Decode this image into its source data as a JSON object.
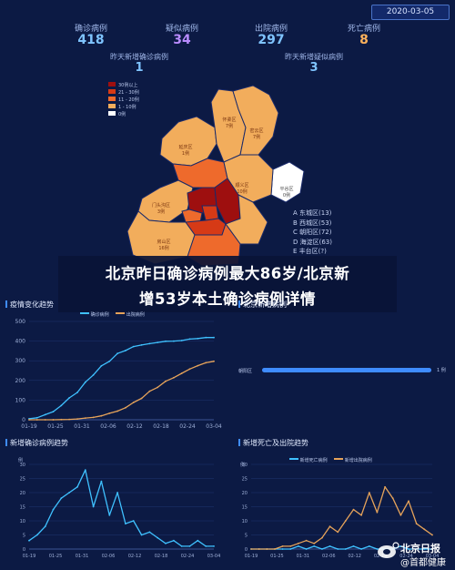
{
  "header": {
    "date": "2020-03-05"
  },
  "stats": [
    {
      "label": "确诊病例",
      "value": "418",
      "color": "#7fc4ff"
    },
    {
      "label": "疑似病例",
      "value": "34",
      "color": "#b98cff"
    },
    {
      "label": "出院病例",
      "value": "297",
      "color": "#7fc4ff"
    },
    {
      "label": "死亡病例",
      "value": "8",
      "color": "#ffb25c"
    }
  ],
  "new_stats": [
    {
      "label": "昨天新增确诊病例",
      "value": "1"
    },
    {
      "label": "昨天新增疑似病例",
      "value": "3"
    }
  ],
  "map_legend": [
    {
      "label": "30例以上",
      "color": "#9e0f0f"
    },
    {
      "label": "21 - 30例",
      "color": "#d63a16"
    },
    {
      "label": "11 - 20例",
      "color": "#ee6a2c"
    },
    {
      "label": "1 - 10例",
      "color": "#f2ad5c"
    },
    {
      "label": "0例",
      "color": "#ffffff"
    }
  ],
  "district_labels": [
    {
      "name": "延庆区",
      "count": "1例"
    },
    {
      "name": "怀柔区",
      "count": "7例"
    },
    {
      "name": "密云区",
      "count": "7例"
    },
    {
      "name": "昌平区",
      "count": "?"
    },
    {
      "name": "顺义区",
      "count": "10例"
    },
    {
      "name": "平谷区",
      "count": "0例"
    },
    {
      "name": "门头沟区",
      "count": "3例"
    },
    {
      "name": "石景山区",
      "count": ""
    },
    {
      "name": "通州区",
      "count": "?"
    },
    {
      "name": "房山区",
      "count": "16例"
    },
    {
      "name": "大兴区",
      "count": "?"
    }
  ],
  "district_list": [
    "A 东城区(13)",
    "B 西城区(53)",
    "C 朝阳区(72)",
    "D 海淀区(63)",
    "E 丰台区(?)"
  ],
  "banner": {
    "line1": "北京昨日确诊病例最大86岁/北京新",
    "line2": "增53岁本土确诊病例详情"
  },
  "trend_panel": {
    "title": "疫情变化趋势",
    "legend": [
      "确诊病例",
      "出院病例"
    ],
    "y_ticks": [
      "500",
      "400",
      "300",
      "200",
      "100",
      "0"
    ],
    "x_ticks": [
      "01-19",
      "01-25",
      "01-31",
      "02-06",
      "02-12",
      "02-18",
      "02-24",
      "03-04"
    ]
  },
  "right_panel": {
    "partial_title": "北京新增病例",
    "bar_label": "朝阳区",
    "bar_value": "1 例",
    "bar_fraction": 1.0
  },
  "new_confirmed_panel": {
    "title": "新增确诊病例趋势",
    "unit": "例",
    "y_ticks": [
      "30",
      "25",
      "20",
      "15",
      "10",
      "5",
      "0"
    ],
    "x_ticks": [
      "01-19",
      "01-25",
      "01-31",
      "02-06",
      "02-12",
      "02-18",
      "02-24",
      "03-04"
    ]
  },
  "new_death_panel": {
    "title": "新增死亡及出院趋势",
    "unit": "例",
    "legend": [
      "新增死亡病例",
      "新增出院病例"
    ],
    "y_ticks": [
      "30",
      "25",
      "20",
      "15",
      "10",
      "5",
      "0"
    ],
    "x_ticks": [
      "01-19",
      "01-25",
      "01-31",
      "02-06",
      "02-12",
      "02-18",
      "02-24",
      "03-04"
    ]
  },
  "watermark": {
    "line1": "北京日报",
    "line2": "@首都健康"
  },
  "chart_data": [
    {
      "type": "line",
      "ylim": [
        0,
        500
      ],
      "x": [
        "01-19",
        "01-21",
        "01-23",
        "01-25",
        "01-27",
        "01-29",
        "01-31",
        "02-02",
        "02-04",
        "02-06",
        "02-08",
        "02-10",
        "02-12",
        "02-14",
        "02-16",
        "02-18",
        "02-20",
        "02-22",
        "02-24",
        "02-26",
        "02-28",
        "03-01",
        "03-03",
        "03-04"
      ],
      "series": [
        {
          "name": "确诊病例",
          "color": "#3fc1ff",
          "values": [
            5,
            10,
            26,
            41,
            72,
            111,
            139,
            191,
            228,
            274,
            297,
            337,
            352,
            372,
            380,
            387,
            393,
            399,
            400,
            403,
            410,
            413,
            418,
            418
          ]
        },
        {
          "name": "出院病例",
          "color": "#e6a35a",
          "values": [
            0,
            0,
            0,
            0,
            1,
            2,
            4,
            9,
            12,
            20,
            33,
            44,
            61,
            88,
            109,
            145,
            165,
            196,
            214,
            236,
            258,
            275,
            290,
            297
          ]
        }
      ]
    },
    {
      "type": "line",
      "ylim": [
        0,
        30
      ],
      "x": [
        "01-19",
        "01-21",
        "01-23",
        "01-25",
        "01-27",
        "01-29",
        "01-31",
        "02-02",
        "02-04",
        "02-06",
        "02-08",
        "02-10",
        "02-12",
        "02-14",
        "02-16",
        "02-18",
        "02-20",
        "02-22",
        "02-24",
        "02-26",
        "02-28",
        "03-01",
        "03-03",
        "03-04"
      ],
      "series": [
        {
          "name": "新增确诊病例",
          "color": "#3fc1ff",
          "values": [
            3,
            5,
            8,
            14,
            18,
            20,
            22,
            28,
            15,
            24,
            12,
            20,
            9,
            10,
            5,
            6,
            4,
            2,
            3,
            1,
            1,
            3,
            1,
            1
          ]
        }
      ]
    },
    {
      "type": "line",
      "ylim": [
        0,
        30
      ],
      "x": [
        "01-19",
        "01-21",
        "01-23",
        "01-25",
        "01-27",
        "01-29",
        "01-31",
        "02-02",
        "02-04",
        "02-06",
        "02-08",
        "02-10",
        "02-12",
        "02-14",
        "02-16",
        "02-18",
        "02-20",
        "02-22",
        "02-24",
        "02-26",
        "02-28",
        "03-01",
        "03-03",
        "03-04"
      ],
      "series": [
        {
          "name": "新增死亡病例",
          "color": "#3fc1ff",
          "values": [
            0,
            0,
            0,
            0,
            0,
            0,
            1,
            0,
            1,
            0,
            1,
            0,
            0,
            1,
            0,
            1,
            0,
            0,
            0,
            1,
            0,
            0,
            0,
            0
          ]
        },
        {
          "name": "新增出院病例",
          "color": "#e6a35a",
          "values": [
            0,
            0,
            0,
            0,
            1,
            1,
            2,
            3,
            2,
            4,
            8,
            6,
            10,
            14,
            12,
            20,
            13,
            22,
            18,
            12,
            17,
            9,
            7,
            5
          ]
        }
      ]
    }
  ]
}
